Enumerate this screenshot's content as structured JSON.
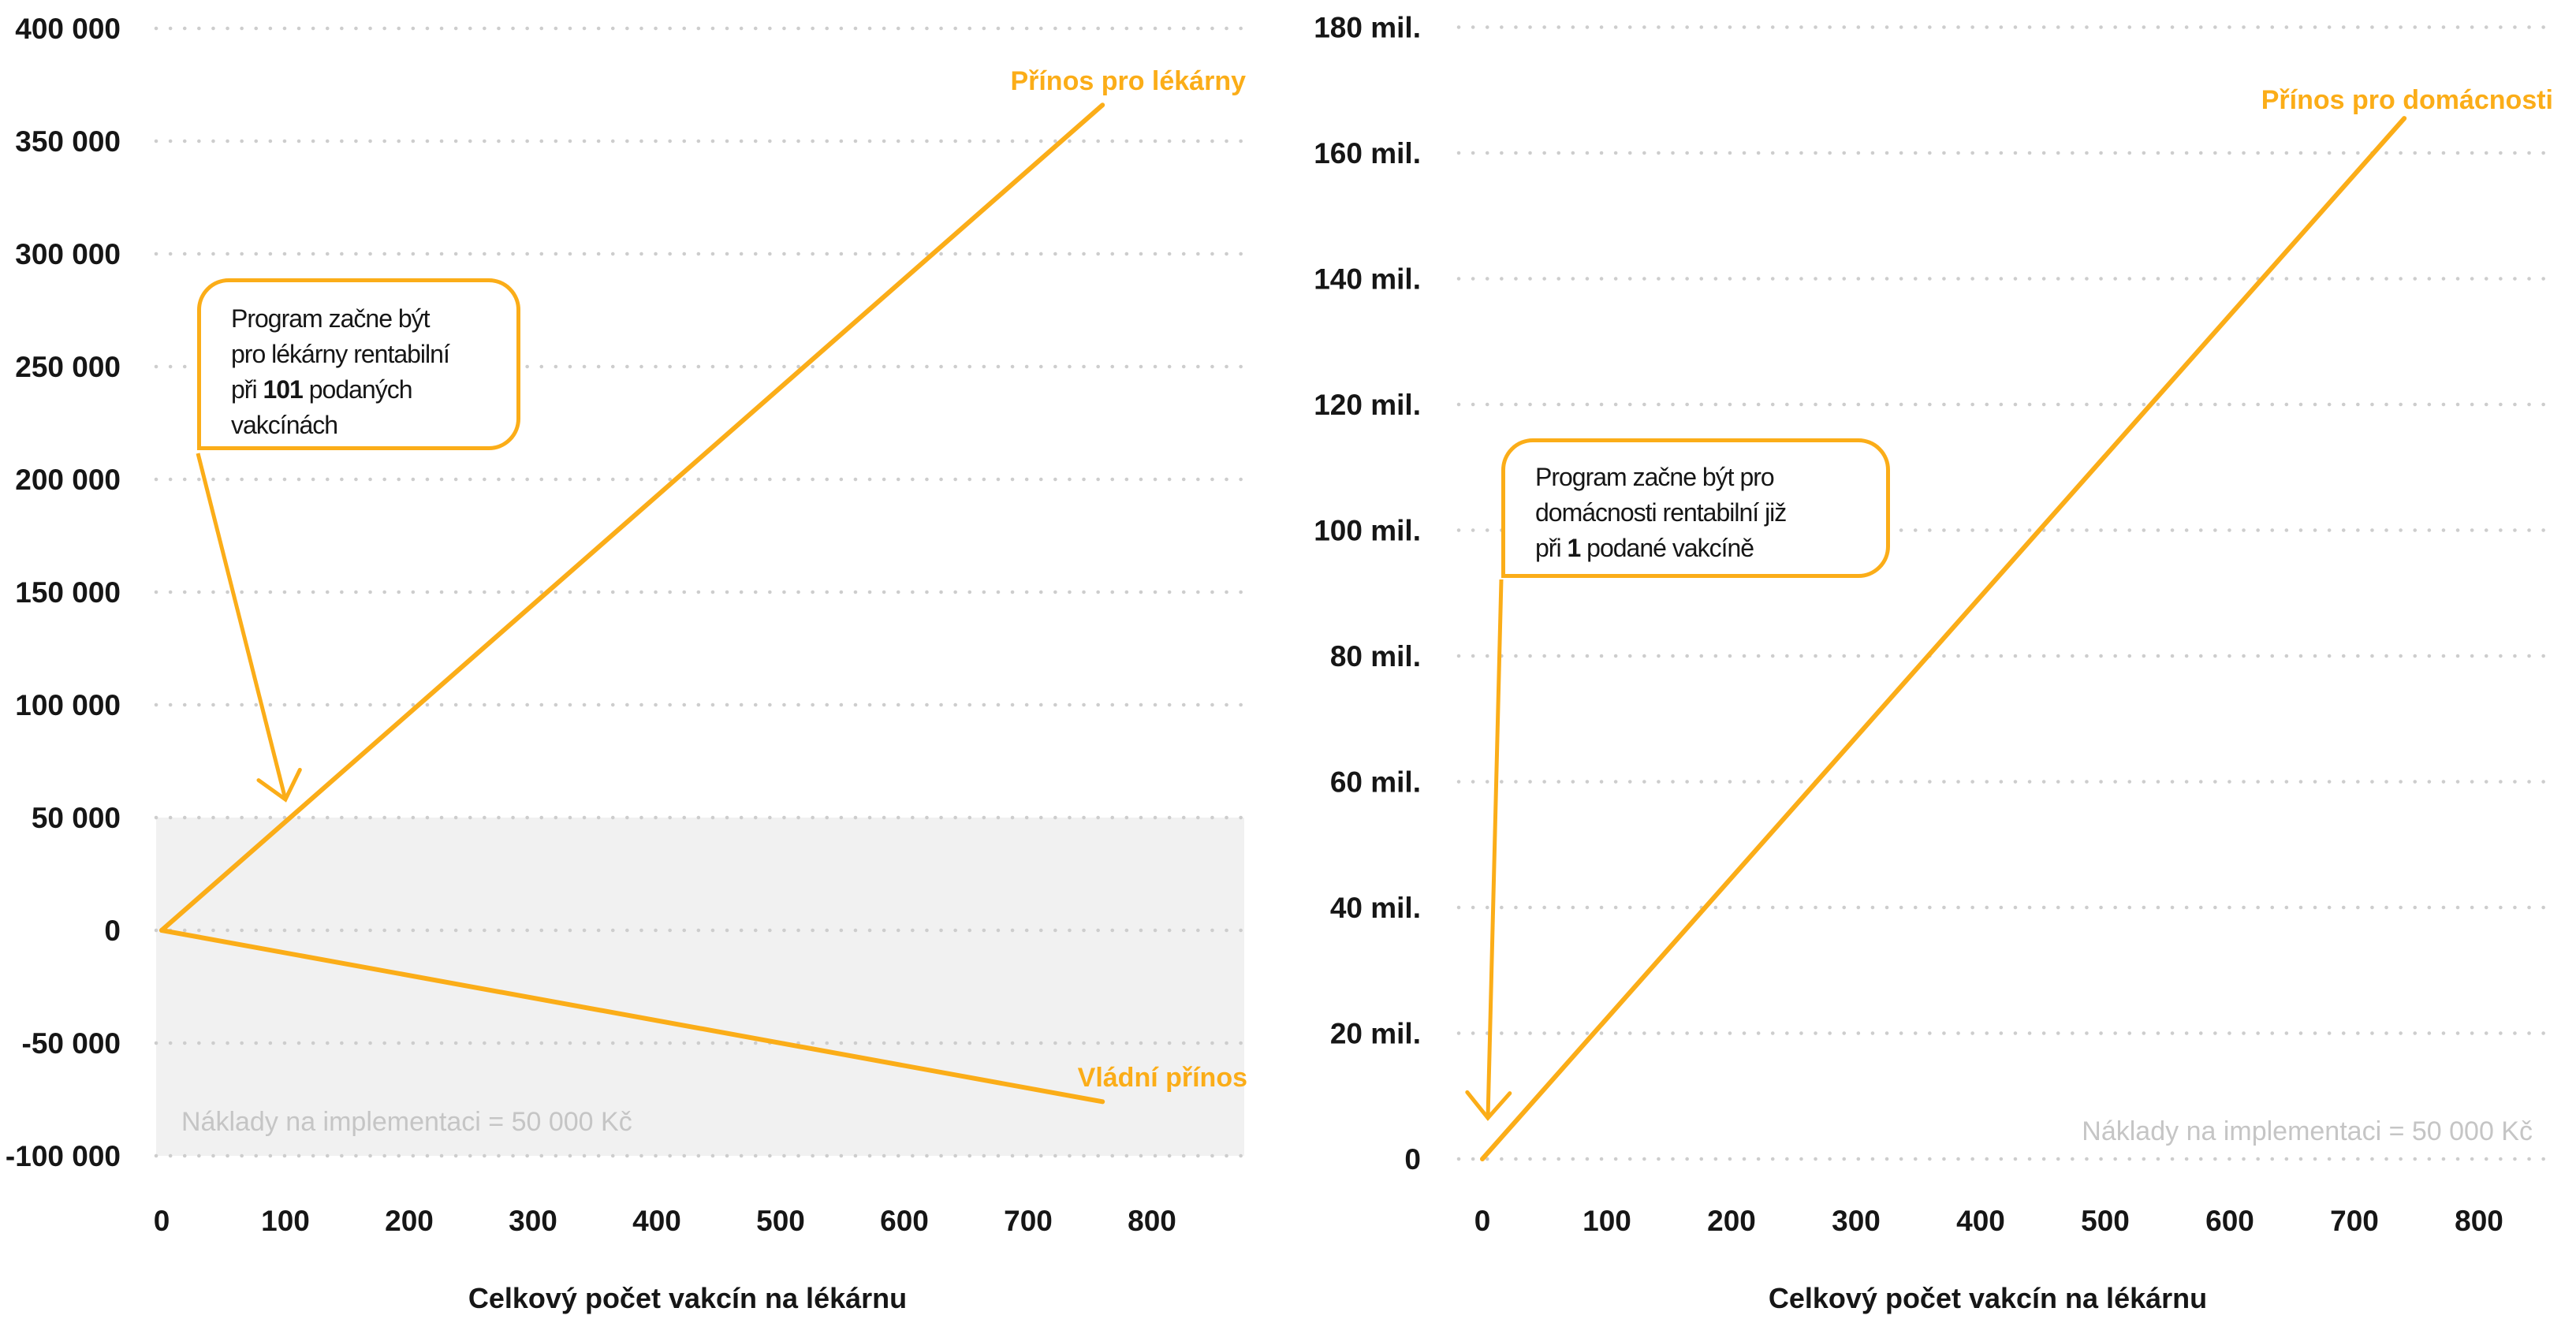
{
  "colors": {
    "accent_amber": "#FBAD18",
    "grid_dot": "#CDCDCD",
    "cost_band_fill": "#F1F1F1",
    "muted_note_gray": "#C5C5C5",
    "text_dark": "#161616",
    "background": "#FFFFFF"
  },
  "chart_data": [
    {
      "id": "pharmacy",
      "type": "line",
      "title": "",
      "xlabel": "Celkový počet vakcín na lékárnu",
      "ylabel": "",
      "xlim": [
        0,
        875
      ],
      "ylim": [
        -100000,
        400000
      ],
      "grid": "horizontal dotted",
      "legend_position": "inline-end-labels",
      "x_ticks": [
        0,
        100,
        200,
        300,
        400,
        500,
        600,
        700,
        800
      ],
      "x_tick_labels": [
        "0",
        "100",
        "200",
        "300",
        "400",
        "500",
        "600",
        "700",
        "800"
      ],
      "y_ticks": [
        400000,
        350000,
        300000,
        250000,
        200000,
        150000,
        100000,
        50000,
        0,
        -50000,
        -100000
      ],
      "y_tick_labels": [
        "400 000",
        "350 000",
        "300 000",
        "250 000",
        "200 000",
        "150 000",
        "100 000",
        "50 000",
        "0",
        "-50 000",
        "-100 000"
      ],
      "series": [
        {
          "name": "Přínos pro lékárny",
          "color": "#FBAD18",
          "points": [
            [
              0,
              0
            ],
            [
              760,
              366000
            ]
          ]
        },
        {
          "name": "Vládní přínos",
          "color": "#FBAD18",
          "points": [
            [
              0,
              0
            ],
            [
              760,
              -76000
            ]
          ]
        }
      ],
      "cost_band": {
        "y_from": -100000,
        "y_to": 50000,
        "fill": "#F1F1F1",
        "label": "Náklady na implementaci = 50 000 Kč"
      },
      "annotation": {
        "plain_text": "Program začne být pro lékárny rentabilní při 101 podaných vakcínách",
        "lines": [
          [
            {
              "t": "Program začne být",
              "b": false
            }
          ],
          [
            {
              "t": "pro lékárny rentabilní",
              "b": false
            }
          ],
          [
            {
              "t": "při ",
              "b": false
            },
            {
              "t": "101",
              "b": true
            },
            {
              "t": " podaných",
              "b": false
            }
          ],
          [
            {
              "t": "vakcínách",
              "b": false
            }
          ]
        ],
        "arrow_target": {
          "x": 101,
          "y": 50000
        }
      }
    },
    {
      "id": "households",
      "type": "line",
      "title": "",
      "xlabel": "Celkový počet vakcín na lékárnu",
      "ylabel": "",
      "xlim": [
        0,
        860
      ],
      "ylim": [
        0,
        183000000
      ],
      "grid": "horizontal dotted",
      "legend_position": "inline-end-labels",
      "x_ticks": [
        0,
        100,
        200,
        300,
        400,
        500,
        600,
        700,
        800
      ],
      "x_tick_labels": [
        "0",
        "100",
        "200",
        "300",
        "400",
        "500",
        "600",
        "700",
        "800"
      ],
      "y_ticks": [
        180000000,
        160000000,
        140000000,
        120000000,
        100000000,
        80000000,
        60000000,
        40000000,
        20000000,
        0
      ],
      "y_tick_labels": [
        "180 mil.",
        "160 mil.",
        "140 mil.",
        "120 mil.",
        "100 mil.",
        "80 mil.",
        "60 mil.",
        "40 mil.",
        "20 mil.",
        "0"
      ],
      "series": [
        {
          "name": "Přínos pro domácnosti",
          "color": "#FBAD18",
          "points": [
            [
              0,
              0
            ],
            [
              740,
              165500000
            ]
          ]
        }
      ],
      "cost_note": "Náklady na implementaci = 50 000 Kč",
      "annotation": {
        "plain_text": "Program začne být pro domácnosti rentabilní již při 1 podané vakcíně",
        "lines": [
          [
            {
              "t": "Program začne být pro",
              "b": false
            }
          ],
          [
            {
              "t": "domácnosti rentabilní již",
              "b": false
            }
          ],
          [
            {
              "t": "při ",
              "b": false
            },
            {
              "t": "1",
              "b": true
            },
            {
              "t": " podané vakcíně",
              "b": false
            }
          ]
        ],
        "arrow_target": {
          "x": 1,
          "y": 0
        }
      }
    }
  ]
}
